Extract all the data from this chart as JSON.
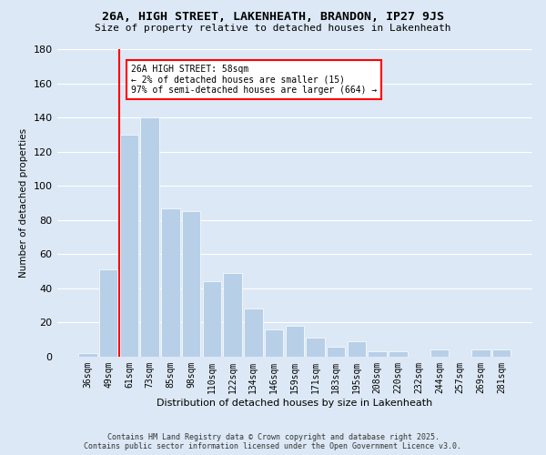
{
  "title": "26A, HIGH STREET, LAKENHEATH, BRANDON, IP27 9JS",
  "subtitle": "Size of property relative to detached houses in Lakenheath",
  "xlabel": "Distribution of detached houses by size in Lakenheath",
  "ylabel": "Number of detached properties",
  "categories": [
    "36sqm",
    "49sqm",
    "61sqm",
    "73sqm",
    "85sqm",
    "98sqm",
    "110sqm",
    "122sqm",
    "134sqm",
    "146sqm",
    "159sqm",
    "171sqm",
    "183sqm",
    "195sqm",
    "208sqm",
    "220sqm",
    "232sqm",
    "244sqm",
    "257sqm",
    "269sqm",
    "281sqm"
  ],
  "values": [
    2,
    51,
    130,
    140,
    87,
    85,
    44,
    49,
    28,
    16,
    18,
    11,
    6,
    9,
    3,
    3,
    0,
    4,
    0,
    4,
    4
  ],
  "bar_color": "#b8cfe8",
  "bar_edge_color": "#b8cfe8",
  "vline_color": "red",
  "annotation_title": "26A HIGH STREET: 58sqm",
  "annotation_line1": "← 2% of detached houses are smaller (15)",
  "annotation_line2": "97% of semi-detached houses are larger (664) →",
  "ylim": [
    0,
    180
  ],
  "yticks": [
    0,
    20,
    40,
    60,
    80,
    100,
    120,
    140,
    160,
    180
  ],
  "footer1": "Contains HM Land Registry data © Crown copyright and database right 2025.",
  "footer2": "Contains public sector information licensed under the Open Government Licence v3.0.",
  "bg_color": "#dce8f5",
  "plot_bg_color": "#dce8f5"
}
